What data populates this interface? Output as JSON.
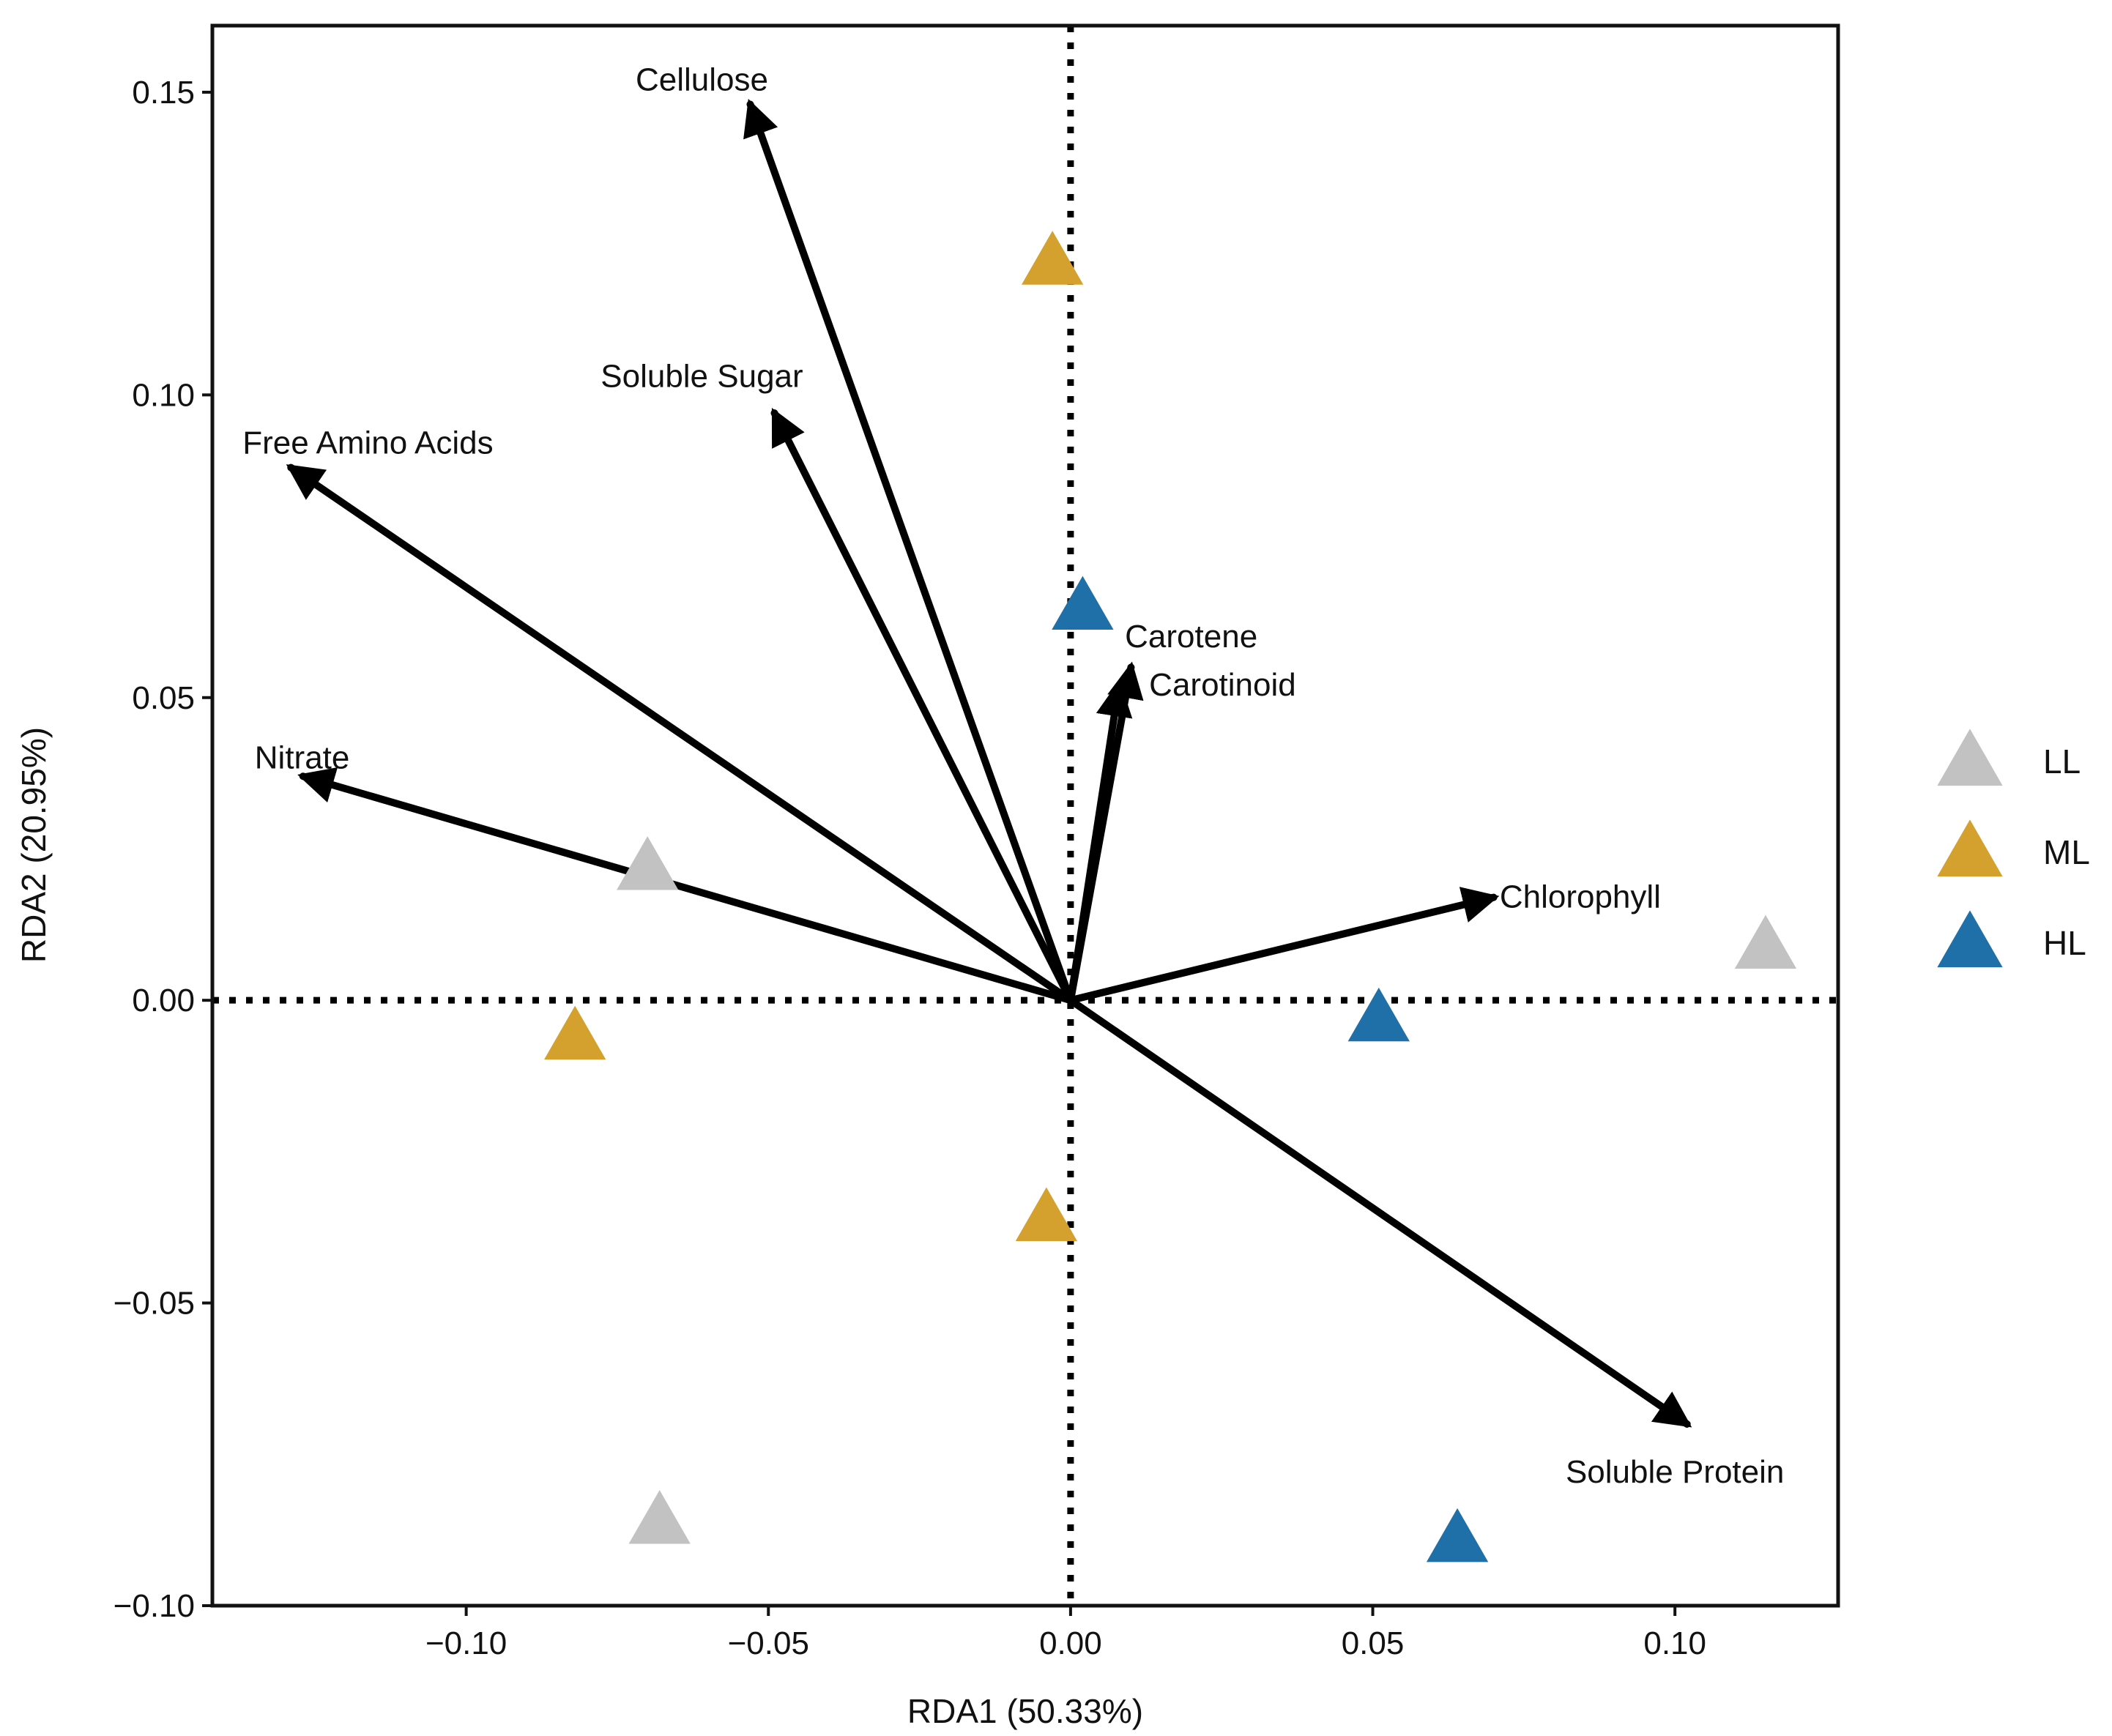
{
  "chart_data": {
    "type": "scatter",
    "subtype": "rda-biplot",
    "title": "",
    "xlabel": "RDA1 (50.33%)",
    "ylabel": "RDA2 (20.95%)",
    "xlim": [
      -0.142,
      0.127
    ],
    "ylim": [
      -0.1,
      0.161
    ],
    "x_ticks": [
      -0.1,
      -0.05,
      0.0,
      0.05,
      0.1
    ],
    "x_tick_labels": [
      "−0.10",
      "−0.05",
      "0.00",
      "0.05",
      "0.10"
    ],
    "y_ticks": [
      -0.1,
      -0.05,
      0.0,
      0.05,
      0.1,
      0.15
    ],
    "y_tick_labels": [
      "−0.10",
      "−0.05",
      "0.00",
      "0.05",
      "0.10",
      "0.15"
    ],
    "grid": false,
    "zero_lines": "dotted",
    "legend_position": "right",
    "colors": {
      "axis": "#111111",
      "arrow": "#000000"
    },
    "groups": [
      {
        "name": "LL",
        "color": "#c2c2c2"
      },
      {
        "name": "ML",
        "color": "#d4a12e"
      },
      {
        "name": "HL",
        "color": "#1f6fa8"
      }
    ],
    "series": [
      {
        "name": "LL",
        "points": [
          [
            -0.07,
            0.022
          ],
          [
            -0.068,
            -0.086
          ],
          [
            0.115,
            0.009
          ]
        ]
      },
      {
        "name": "ML",
        "points": [
          [
            -0.003,
            0.122
          ],
          [
            -0.082,
            -0.006
          ],
          [
            -0.004,
            -0.036
          ]
        ]
      },
      {
        "name": "HL",
        "points": [
          [
            0.002,
            0.065
          ],
          [
            0.051,
            -0.003
          ],
          [
            0.064,
            -0.089
          ]
        ]
      }
    ],
    "vectors": [
      {
        "name": "Cellulose",
        "x": -0.053,
        "y": 0.148,
        "label_anchor": "middle",
        "label_dx": -0.008,
        "label_dy": 0.004
      },
      {
        "name": "Soluble Sugar",
        "x": -0.049,
        "y": 0.097,
        "label_anchor": "middle",
        "label_dx": -0.012,
        "label_dy": 0.006
      },
      {
        "name": "Free Amino Acids",
        "x": -0.129,
        "y": 0.088,
        "label_anchor": "start",
        "label_dx": -0.008,
        "label_dy": 0.004
      },
      {
        "name": "Nitrate",
        "x": -0.127,
        "y": 0.037,
        "label_anchor": "start",
        "label_dx": -0.008,
        "label_dy": 0.003
      },
      {
        "name": "Carotene",
        "x": 0.008,
        "y": 0.052,
        "label_anchor": "start",
        "label_dx": 0.001,
        "label_dy": 0.008
      },
      {
        "name": "Carotinoid",
        "x": 0.01,
        "y": 0.055,
        "label_anchor": "start",
        "label_dx": 0.003,
        "label_dy": -0.003
      },
      {
        "name": "Chlorophyll",
        "x": 0.07,
        "y": 0.017,
        "label_anchor": "start",
        "label_dx": 0.001,
        "label_dy": 0.0
      },
      {
        "name": "Soluble Protein",
        "x": 0.102,
        "y": -0.07,
        "label_anchor": "middle",
        "label_dx": -0.002,
        "label_dy": -0.008
      }
    ]
  }
}
